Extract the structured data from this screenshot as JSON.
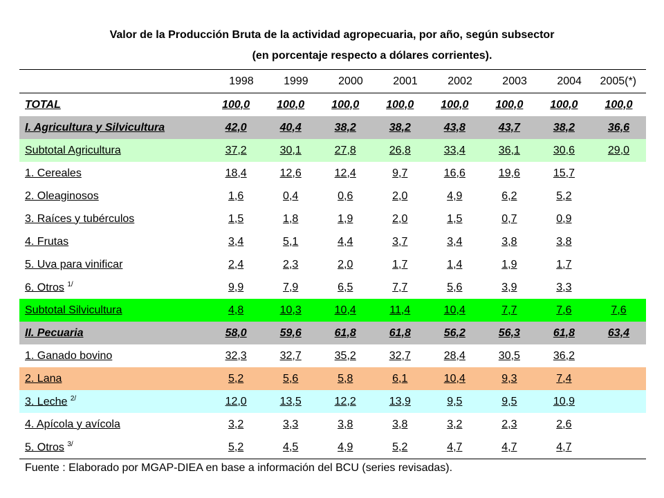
{
  "title": {
    "line1": "Valor de la Producción Bruta de la actividad agropecuaria, por año, según subsector",
    "line2": "(en porcentaje respecto a dólares corrientes)."
  },
  "table": {
    "columns": [
      "1998",
      "1999",
      "2000",
      "2001",
      "2002",
      "2003",
      "2004",
      "2005(*)"
    ],
    "rows": [
      {
        "label": "TOTAL",
        "note": "",
        "style": "bold",
        "values": [
          "100,0",
          "100,0",
          "100,0",
          "100,0",
          "100,0",
          "100,0",
          "100,0",
          "100,0"
        ]
      },
      {
        "label": "I. Agricultura y Silvicultura",
        "note": "",
        "style": "bold grey",
        "values": [
          "42,0",
          "40,4",
          "38,2",
          "38,2",
          "43,8",
          "43,7",
          "38,2",
          "36,6"
        ]
      },
      {
        "label": "Subtotal Agricultura",
        "note": "",
        "style": "lgreen",
        "values": [
          "37,2",
          "30,1",
          "27,8",
          "26,8",
          "33,4",
          "36,1",
          "30,6",
          "29,0"
        ]
      },
      {
        "label": "1. Cereales",
        "note": "",
        "style": "",
        "values": [
          "18,4",
          "12,6",
          "12,4",
          "9,7",
          "16,6",
          "19,6",
          "15,7",
          ""
        ]
      },
      {
        "label": "2. Oleaginosos",
        "note": "",
        "style": "",
        "values": [
          "1,6",
          "0,4",
          "0,6",
          "2,0",
          "4,9",
          "6,2",
          "5,2",
          ""
        ]
      },
      {
        "label": "3. Raíces y tubérculos",
        "note": "",
        "style": "",
        "values": [
          "1,5",
          "1,8",
          "1,9",
          "2,0",
          "1,5",
          "0,7",
          "0,9",
          ""
        ]
      },
      {
        "label": "4. Frutas",
        "note": "",
        "style": "",
        "values": [
          "3,4",
          "5,1",
          "4,4",
          "3,7",
          "3,4",
          "3,8",
          "3,8",
          ""
        ]
      },
      {
        "label": "5. Uva para vinificar",
        "note": "",
        "style": "",
        "values": [
          "2,4",
          "2,3",
          "2,0",
          "1,7",
          "1,4",
          "1,9",
          "1,7",
          ""
        ]
      },
      {
        "label": "6. Otros",
        "note": "1/",
        "style": "",
        "values": [
          "9,9",
          "7,9",
          "6,5",
          "7,7",
          "5,6",
          "3,9",
          "3,3",
          ""
        ]
      },
      {
        "label": "Subtotal Silvicultura",
        "note": "",
        "style": "green",
        "values": [
          "4,8",
          "10,3",
          "10,4",
          "11,4",
          "10,4",
          "7,7",
          "7,6",
          "7,6"
        ]
      },
      {
        "label": "II. Pecuaria",
        "note": "",
        "style": "bold grey",
        "values": [
          "58,0",
          "59,6",
          "61,8",
          "61,8",
          "56,2",
          "56,3",
          "61,8",
          "63,4"
        ]
      },
      {
        "label": "1. Ganado bovino",
        "note": "",
        "style": "",
        "values": [
          "32,3",
          "32,7",
          "35,2",
          "32,7",
          "28,4",
          "30,5",
          "36,2",
          ""
        ]
      },
      {
        "label": "2. Lana",
        "note": "",
        "style": "peach",
        "values": [
          "5,2",
          "5,6",
          "5,8",
          "6,1",
          "10,4",
          "9,3",
          "7,4",
          ""
        ]
      },
      {
        "label": "3. Leche",
        "note": "2/",
        "style": "cyan",
        "values": [
          "12,0",
          "13,5",
          "12,2",
          "13,9",
          "9,5",
          "9,5",
          "10,9",
          ""
        ]
      },
      {
        "label": "4. Apícola y avícola",
        "note": "",
        "style": "",
        "values": [
          "3,2",
          "3,3",
          "3,8",
          "3,8",
          "3,2",
          "2,3",
          "2,6",
          ""
        ]
      },
      {
        "label": "5. Otros",
        "note": "3/",
        "style": "last",
        "values": [
          "5,2",
          "4,5",
          "4,9",
          "5,2",
          "4,7",
          "4,7",
          "4,7",
          ""
        ]
      }
    ]
  },
  "footer": "Fuente  : Elaborado por MGAP-DIEA en base a información del  BCU (series revisadas)."
}
